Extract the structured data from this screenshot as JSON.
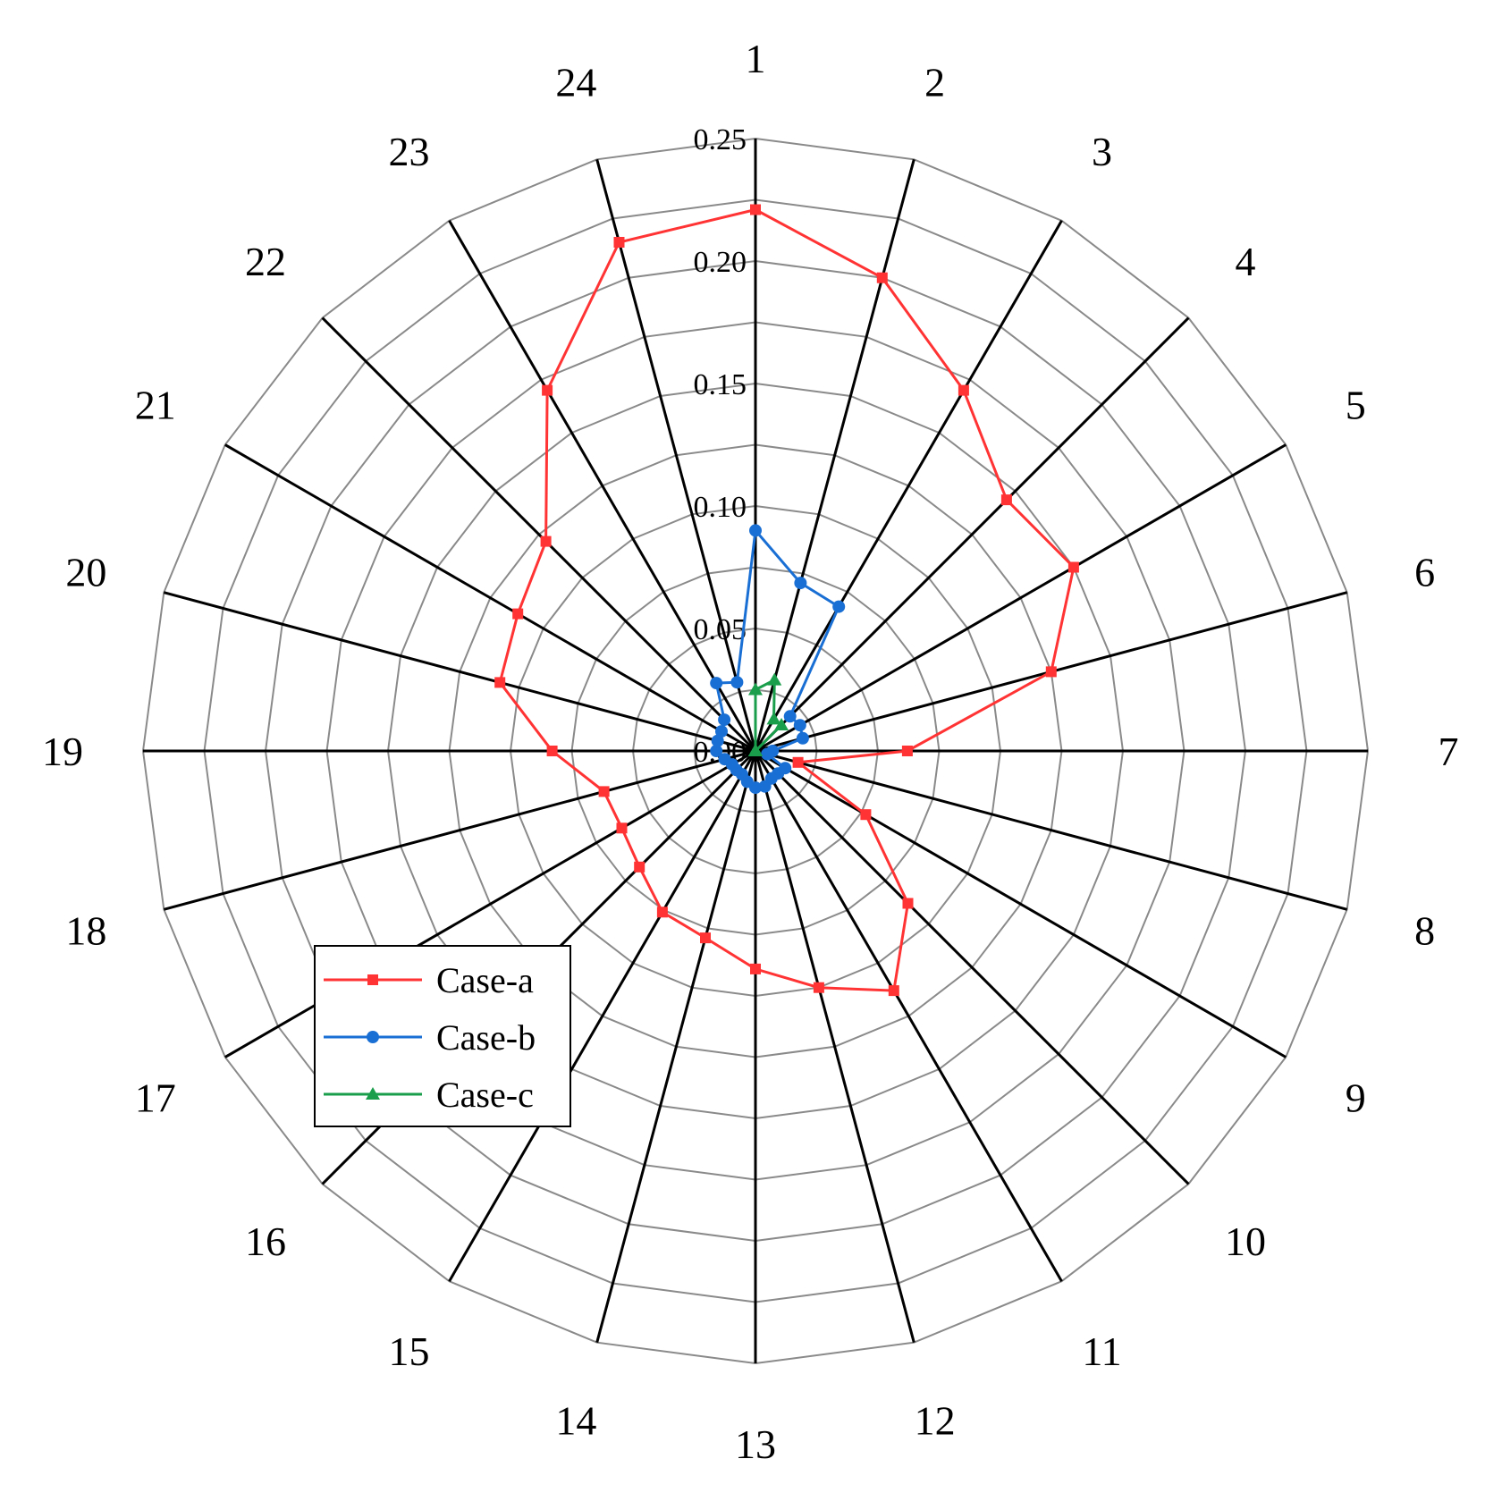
{
  "chart_data": {
    "type": "radar",
    "axes": [
      "1",
      "2",
      "3",
      "4",
      "5",
      "6",
      "7",
      "8",
      "9",
      "10",
      "11",
      "12",
      "13",
      "14",
      "15",
      "16",
      "17",
      "18",
      "19",
      "20",
      "21",
      "22",
      "23",
      "24"
    ],
    "rlim": [
      0,
      0.25
    ],
    "rticks": [
      0.0,
      0.05,
      0.1,
      0.15,
      0.2,
      0.25
    ],
    "rtick_labels": [
      "0.00",
      "0.05",
      "0.10",
      "0.15",
      "0.20",
      "0.25"
    ],
    "grid": true,
    "legend_position": "lower-left",
    "series": [
      {
        "name": "Case-a",
        "color": "#ff3333",
        "marker": "square",
        "values": [
          0.221,
          0.2,
          0.17,
          0.145,
          0.15,
          0.125,
          0.062,
          0.018,
          0.052,
          0.088,
          0.113,
          0.1,
          0.089,
          0.079,
          0.076,
          0.067,
          0.063,
          0.064,
          0.083,
          0.108,
          0.112,
          0.121,
          0.17,
          0.215
        ]
      },
      {
        "name": "Case-b",
        "color": "#1a6fd4",
        "marker": "circle",
        "values": [
          0.09,
          0.071,
          0.068,
          0.02,
          0.021,
          0.02,
          0.007,
          0.005,
          0.014,
          0.013,
          0.013,
          0.015,
          0.015,
          0.013,
          0.011,
          0.011,
          0.011,
          0.013,
          0.016,
          0.016,
          0.016,
          0.018,
          0.032,
          0.029
        ]
      },
      {
        "name": "Case-c",
        "color": "#1a9e4b",
        "marker": "triangle",
        "values": [
          0.025,
          0.03,
          0.015,
          0.015,
          0.0,
          0.0,
          0.0,
          0.0,
          0.0,
          0.0,
          0.0,
          0.0,
          0.0,
          0.0,
          0.0,
          0.0,
          0.0,
          0.0,
          0.0,
          0.0,
          0.0,
          0.0,
          0.0,
          0.0
        ]
      }
    ]
  }
}
